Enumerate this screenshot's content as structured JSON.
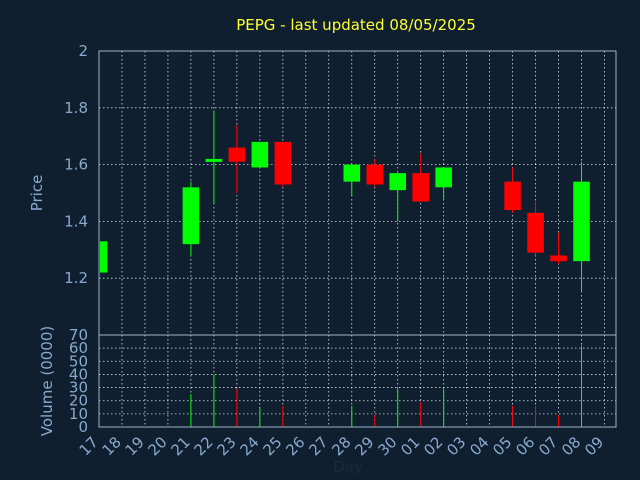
{
  "title": "PEPG - last updated 08/05/2025",
  "colors": {
    "background": "#0f1f30",
    "up": "#00ff00",
    "down": "#ff0000",
    "title": "#ffff33",
    "axis_text": "#8aa9cc"
  },
  "chart_data": [
    {
      "type": "candlestick",
      "title": "PEPG - last updated 08/05/2025",
      "ylabel": "Price",
      "xlabel": "",
      "ylim": [
        1.0,
        2.0
      ],
      "yticks": [
        "1.2",
        "1.4",
        "1.6",
        "1.8",
        "2"
      ],
      "grid": true,
      "x": [
        "17",
        "18",
        "19",
        "20",
        "21",
        "22",
        "23",
        "24",
        "25",
        "26",
        "27",
        "28",
        "29",
        "30",
        "01",
        "02",
        "03",
        "04",
        "05",
        "06",
        "07",
        "08",
        "09"
      ],
      "candles": [
        {
          "day": "17",
          "open": 1.22,
          "high": 1.33,
          "low": 1.21,
          "close": 1.33
        },
        {
          "day": "21",
          "open": 1.32,
          "high": 1.54,
          "low": 1.28,
          "close": 1.52
        },
        {
          "day": "22",
          "open": 1.61,
          "high": 1.79,
          "low": 1.46,
          "close": 1.62
        },
        {
          "day": "23",
          "open": 1.66,
          "high": 1.74,
          "low": 1.5,
          "close": 1.61
        },
        {
          "day": "24",
          "open": 1.59,
          "high": 1.68,
          "low": 1.59,
          "close": 1.68
        },
        {
          "day": "25",
          "open": 1.68,
          "high": 1.68,
          "low": 1.52,
          "close": 1.53
        },
        {
          "day": "28",
          "open": 1.54,
          "high": 1.6,
          "low": 1.49,
          "close": 1.6
        },
        {
          "day": "29",
          "open": 1.6,
          "high": 1.62,
          "low": 1.52,
          "close": 1.53
        },
        {
          "day": "30",
          "open": 1.51,
          "high": 1.57,
          "low": 1.4,
          "close": 1.57
        },
        {
          "day": "01",
          "open": 1.57,
          "high": 1.64,
          "low": 1.47,
          "close": 1.47
        },
        {
          "day": "02",
          "open": 1.52,
          "high": 1.59,
          "low": 1.48,
          "close": 1.59
        },
        {
          "day": "05",
          "open": 1.54,
          "high": 1.59,
          "low": 1.43,
          "close": 1.44
        },
        {
          "day": "06",
          "open": 1.43,
          "high": 1.47,
          "low": 1.28,
          "close": 1.29
        },
        {
          "day": "07",
          "open": 1.28,
          "high": 1.36,
          "low": 1.25,
          "close": 1.26
        },
        {
          "day": "08",
          "open": 1.26,
          "high": 1.61,
          "low": 1.15,
          "close": 1.54
        }
      ]
    },
    {
      "type": "bar",
      "ylabel": "Volume (0000)",
      "xlabel": "Day",
      "ylim": [
        0,
        70
      ],
      "yticks": [
        "0",
        "10",
        "20",
        "30",
        "40",
        "50",
        "60",
        "70"
      ],
      "grid": true,
      "categories": [
        "17",
        "18",
        "19",
        "20",
        "21",
        "22",
        "23",
        "24",
        "25",
        "26",
        "27",
        "28",
        "29",
        "30",
        "01",
        "02",
        "03",
        "04",
        "05",
        "06",
        "07",
        "08",
        "09"
      ],
      "bars": [
        {
          "day": "17",
          "value": 2,
          "direction": "up"
        },
        {
          "day": "21",
          "value": 25,
          "direction": "up"
        },
        {
          "day": "22",
          "value": 40,
          "direction": "up"
        },
        {
          "day": "23",
          "value": 29,
          "direction": "down"
        },
        {
          "day": "24",
          "value": 14,
          "direction": "up"
        },
        {
          "day": "25",
          "value": 16,
          "direction": "down"
        },
        {
          "day": "28",
          "value": 16,
          "direction": "up"
        },
        {
          "day": "29",
          "value": 9,
          "direction": "down"
        },
        {
          "day": "30",
          "value": 29,
          "direction": "up"
        },
        {
          "day": "01",
          "value": 19,
          "direction": "down"
        },
        {
          "day": "02",
          "value": 29,
          "direction": "up"
        },
        {
          "day": "05",
          "value": 16,
          "direction": "down"
        },
        {
          "day": "06",
          "value": 16,
          "direction": "down"
        },
        {
          "day": "07",
          "value": 9,
          "direction": "down"
        },
        {
          "day": "08",
          "value": 62,
          "direction": "up"
        }
      ]
    }
  ]
}
